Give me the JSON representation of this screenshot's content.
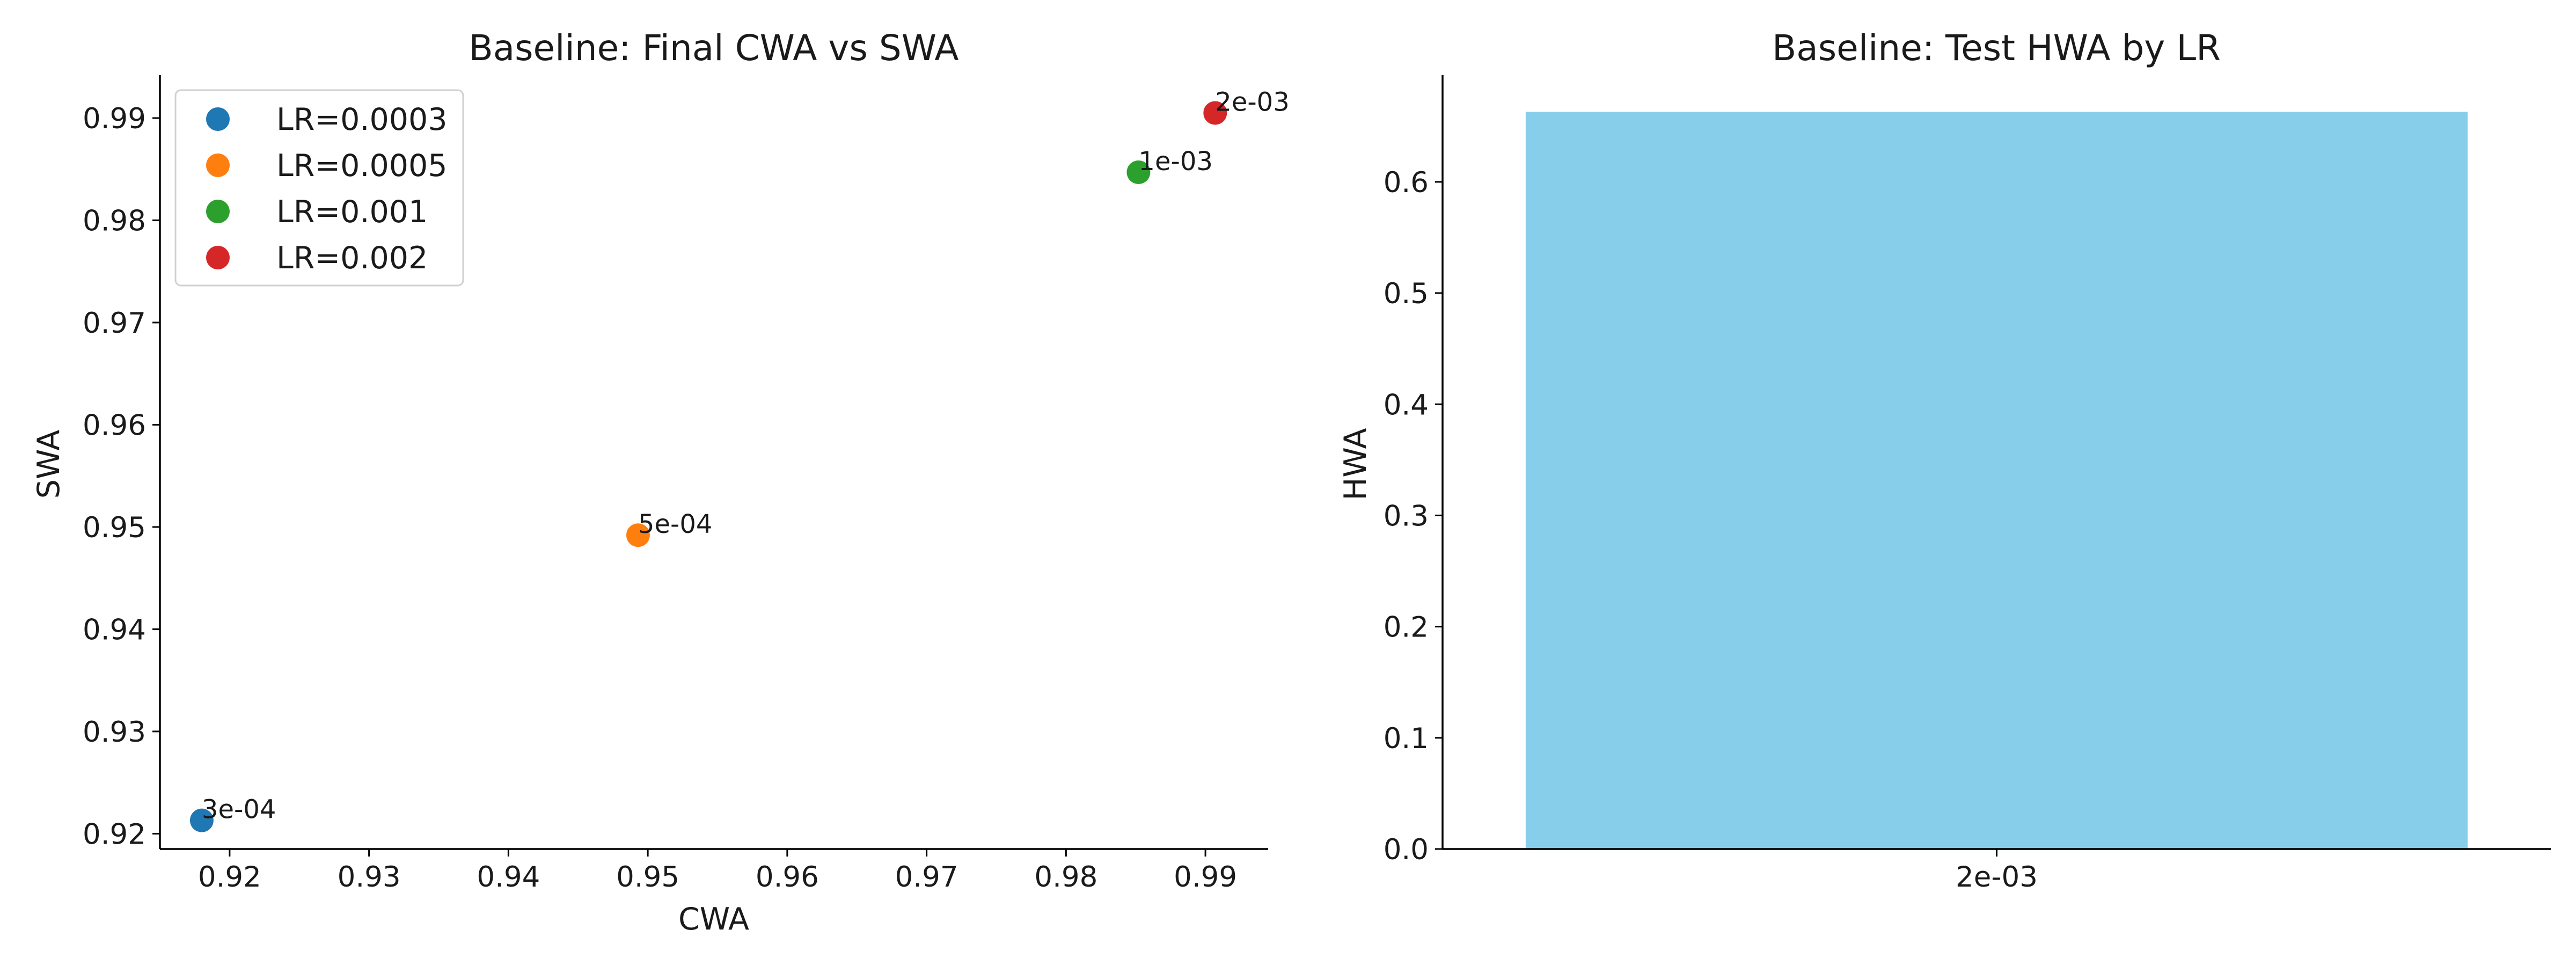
{
  "chart_data": [
    {
      "type": "scatter",
      "title": "Baseline: Final CWA vs SWA",
      "xlabel": "CWA",
      "ylabel": "SWA",
      "xlim": [
        0.915,
        0.9945
      ],
      "ylim": [
        0.9185,
        0.9942
      ],
      "xticks": [
        0.92,
        0.93,
        0.94,
        0.95,
        0.96,
        0.97,
        0.98,
        0.99
      ],
      "yticks": [
        0.92,
        0.93,
        0.94,
        0.95,
        0.96,
        0.97,
        0.98,
        0.99
      ],
      "grid": false,
      "legend_position": "upper-left",
      "series": [
        {
          "name": "LR=0.0003",
          "x": 0.918,
          "y": 0.9213,
          "label": "3e-04",
          "color": "#1f77b4"
        },
        {
          "name": "LR=0.0005",
          "x": 0.9493,
          "y": 0.9492,
          "label": "5e-04",
          "color": "#ff7f0e"
        },
        {
          "name": "LR=0.001",
          "x": 0.9852,
          "y": 0.9847,
          "label": "1e-03",
          "color": "#2ca02c"
        },
        {
          "name": "LR=0.002",
          "x": 0.9907,
          "y": 0.9905,
          "label": "2e-03",
          "color": "#d62728"
        }
      ]
    },
    {
      "type": "bar",
      "title": "Baseline: Test HWA by LR",
      "xlabel": "",
      "ylabel": "HWA",
      "categories": [
        "2e-03"
      ],
      "values": [
        0.663
      ],
      "ylim": [
        0,
        0.696
      ],
      "yticks": [
        0.0,
        0.1,
        0.2,
        0.3,
        0.4,
        0.5,
        0.6
      ],
      "grid": false,
      "color": "#87ceeb"
    }
  ]
}
